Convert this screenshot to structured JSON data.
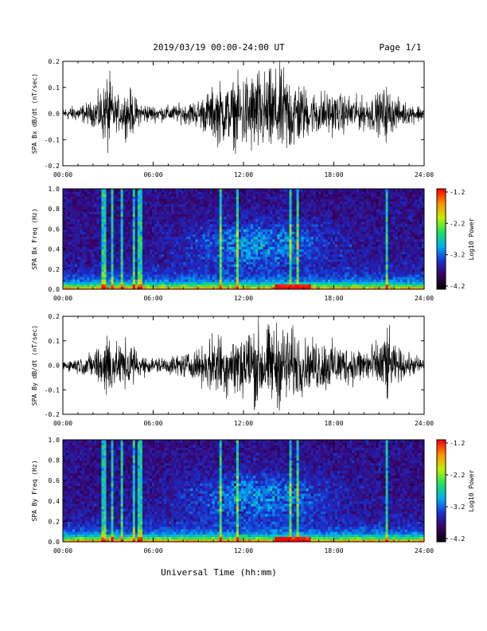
{
  "header": {
    "date_range": "2019/03/19  00:00-24:00 UT",
    "page": "Page 1/1"
  },
  "footer": {
    "xlabel": "Universal Time (hh:mm)"
  },
  "time_ticks": [
    "00:00",
    "06:00",
    "12:00",
    "18:00",
    "24:00"
  ],
  "colorbar": {
    "title": "Log10 Power",
    "tick_labels": [
      "-1.2",
      "-2.2",
      "-3.2",
      "-4.2"
    ],
    "range": [
      -4.2,
      -1.2
    ],
    "colors": [
      "#000000",
      "#3a0060",
      "#1a30d0",
      "#00b0f0",
      "#20e060",
      "#c0f000",
      "#ff9000",
      "#ff0000"
    ]
  },
  "chart_data": [
    {
      "type": "line",
      "ylabel": "SPA Bx dB/dt (nT/sec)",
      "xlim": [
        0,
        24
      ],
      "ylim": [
        -0.2,
        0.2
      ],
      "yticks": [
        "0.2",
        "0.1",
        "0.0",
        "-0.1",
        "-0.2"
      ],
      "envelope": {
        "x": [
          0,
          1,
          2,
          2.8,
          3,
          3.5,
          4,
          4.5,
          5,
          6,
          7,
          8,
          9,
          9.5,
          10,
          10.5,
          11,
          12,
          13,
          13.5,
          14,
          14.5,
          15,
          15.5,
          16,
          16.5,
          17,
          18,
          19,
          20,
          21,
          21.5,
          22,
          23,
          24
        ],
        "amplitude": [
          0.03,
          0.04,
          0.06,
          0.15,
          0.22,
          0.08,
          0.1,
          0.12,
          0.06,
          0.04,
          0.04,
          0.05,
          0.07,
          0.1,
          0.13,
          0.16,
          0.14,
          0.2,
          0.22,
          0.2,
          0.22,
          0.22,
          0.22,
          0.18,
          0.14,
          0.1,
          0.12,
          0.1,
          0.09,
          0.08,
          0.1,
          0.14,
          0.08,
          0.05,
          0.04
        ]
      }
    },
    {
      "type": "heatmap",
      "ylabel": "SPA Bx Freq (Hz)",
      "xlim": [
        0,
        24
      ],
      "ylim": [
        0,
        1.0
      ],
      "yticks": [
        "1.0",
        "0.8",
        "0.6",
        "0.4",
        "0.2",
        "0.0"
      ],
      "value_range": [
        -4.2,
        -1.2
      ]
    },
    {
      "type": "line",
      "ylabel": "SPA By dB/dt (nT/sec)",
      "xlim": [
        0,
        24
      ],
      "ylim": [
        -0.2,
        0.2
      ],
      "yticks": [
        "0.2",
        "0.1",
        "0.0",
        "-0.1",
        "-0.2"
      ],
      "envelope": {
        "x": [
          0,
          1,
          2,
          2.8,
          3,
          3.5,
          4,
          4.5,
          5,
          6,
          7,
          8,
          9,
          9.5,
          10,
          10.5,
          11,
          12,
          13,
          13.5,
          14,
          14.5,
          15,
          15.5,
          16,
          16.5,
          17,
          18,
          19,
          20,
          21,
          21.5,
          22,
          23,
          24
        ],
        "amplitude": [
          0.03,
          0.04,
          0.07,
          0.16,
          0.22,
          0.1,
          0.12,
          0.14,
          0.06,
          0.04,
          0.05,
          0.06,
          0.08,
          0.12,
          0.16,
          0.18,
          0.15,
          0.2,
          0.22,
          0.2,
          0.22,
          0.22,
          0.2,
          0.18,
          0.14,
          0.12,
          0.15,
          0.12,
          0.1,
          0.1,
          0.12,
          0.22,
          0.1,
          0.06,
          0.04
        ]
      }
    },
    {
      "type": "heatmap",
      "ylabel": "SPA By Freq (Hz)",
      "xlim": [
        0,
        24
      ],
      "ylim": [
        0,
        1.0
      ],
      "yticks": [
        "1.0",
        "0.8",
        "0.6",
        "0.4",
        "0.2",
        "0.0"
      ],
      "value_range": [
        -4.2,
        -1.2
      ]
    }
  ]
}
